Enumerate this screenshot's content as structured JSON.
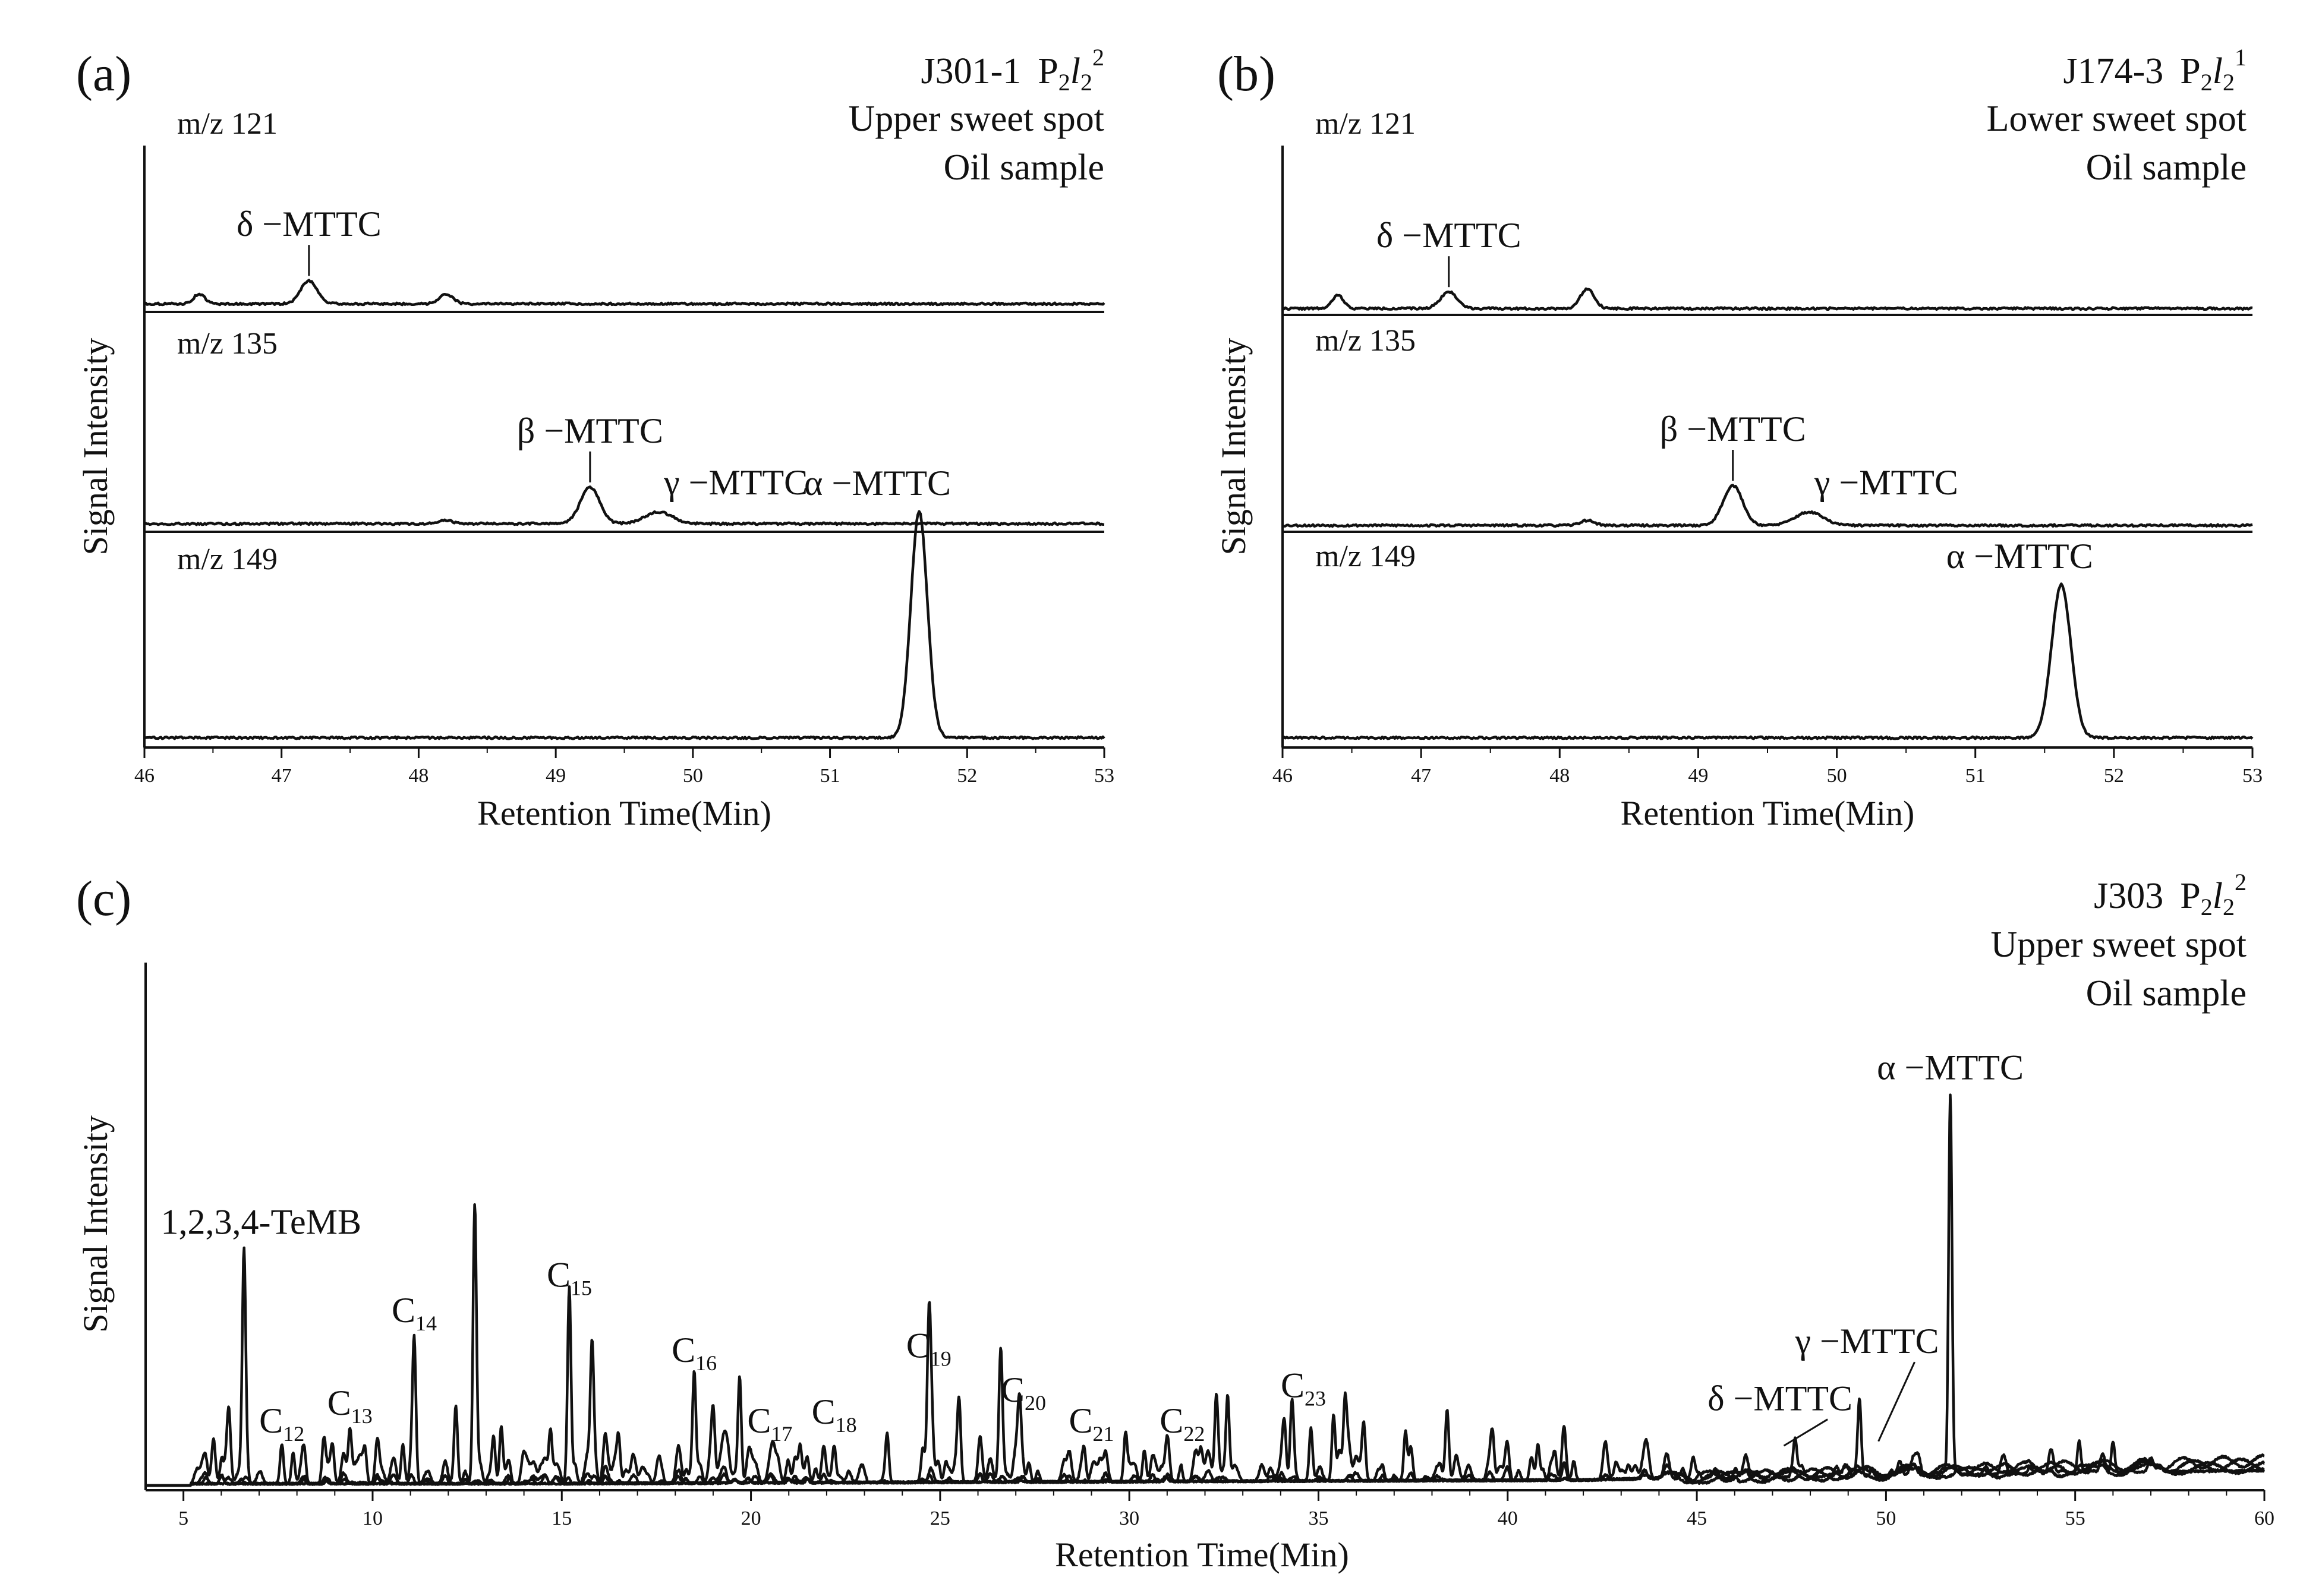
{
  "chart_data": [
    {
      "type": "line",
      "panel_label": "(a)",
      "sample_info": {
        "well": "J301-1",
        "formation": "P2l2 2",
        "zone": "Upper sweet spot",
        "sample": "Oil sample"
      },
      "xlabel": "Retention Time(Min)",
      "ylabel": "Signal Intensity",
      "xlim": [
        46,
        53
      ],
      "xticks": [
        46,
        47,
        48,
        49,
        50,
        51,
        52,
        53
      ],
      "grid": false,
      "series": [
        {
          "name": "m/z 121",
          "baseline": 0.01,
          "peaks": [
            {
              "x": 46.4,
              "h": 0.03,
              "w": 0.04
            },
            {
              "x": 47.2,
              "h": 0.07,
              "w": 0.06,
              "label": "δ −MTTC"
            },
            {
              "x": 48.2,
              "h": 0.03,
              "w": 0.05
            }
          ]
        },
        {
          "name": "m/z 135",
          "baseline": 0.01,
          "peaks": [
            {
              "x": 48.2,
              "h": 0.01,
              "w": 0.05
            },
            {
              "x": 49.25,
              "h": 0.11,
              "w": 0.07,
              "label": "β −MTTC"
            },
            {
              "x": 49.75,
              "h": 0.035,
              "w": 0.1,
              "label": "γ −MTTC"
            }
          ]
        },
        {
          "name": "m/z 149",
          "baseline": 0.015,
          "peaks": [
            {
              "x": 51.65,
              "h": 0.68,
              "w": 0.06,
              "label": "α −MTTC"
            }
          ]
        }
      ]
    },
    {
      "type": "line",
      "panel_label": "(b)",
      "sample_info": {
        "well": "J174-3",
        "formation": "P2l2 1",
        "zone": "Lower sweet spot",
        "sample": "Oil sample"
      },
      "xlabel": "Retention Time(Min)",
      "ylabel": "Signal Intensity",
      "xlim": [
        46,
        53
      ],
      "xticks": [
        46,
        47,
        48,
        49,
        50,
        51,
        52,
        53
      ],
      "grid": false,
      "series": [
        {
          "name": "m/z 121",
          "baseline": 0.005,
          "peaks": [
            {
              "x": 46.4,
              "h": 0.04,
              "w": 0.04
            },
            {
              "x": 47.2,
              "h": 0.05,
              "w": 0.06,
              "label": "δ −MTTC"
            },
            {
              "x": 48.2,
              "h": 0.06,
              "w": 0.05
            }
          ]
        },
        {
          "name": "m/z 135",
          "baseline": 0.005,
          "peaks": [
            {
              "x": 48.2,
              "h": 0.015,
              "w": 0.05
            },
            {
              "x": 49.25,
              "h": 0.12,
              "w": 0.07,
              "label": "β −MTTC"
            },
            {
              "x": 49.8,
              "h": 0.04,
              "w": 0.1,
              "label": "γ −MTTC"
            }
          ]
        },
        {
          "name": "m/z 149",
          "baseline": 0.015,
          "peaks": [
            {
              "x": 51.62,
              "h": 0.46,
              "w": 0.07,
              "label": "α −MTTC"
            }
          ]
        }
      ]
    },
    {
      "type": "line",
      "panel_label": "(c)",
      "sample_info": {
        "well": "J303",
        "formation": "P2l2 2",
        "zone": "Upper sweet spot",
        "sample": "Oil sample"
      },
      "xlabel": "Retention Time(Min)",
      "ylabel": "Signal Intensity",
      "xlim": [
        4,
        60
      ],
      "xticks": [
        5,
        10,
        15,
        20,
        25,
        30,
        35,
        40,
        45,
        50,
        55,
        60
      ],
      "grid": false,
      "peak_labels": [
        {
          "text": "1,2,3,4-TeMB",
          "x": 6.6,
          "y": 0.57
        },
        {
          "text": "C",
          "sub": "12",
          "x": 7.6,
          "y": 0.12
        },
        {
          "text": "C",
          "sub": "13",
          "x": 9.4,
          "y": 0.16
        },
        {
          "text": "C",
          "sub": "14",
          "x": 11.1,
          "y": 0.37
        },
        {
          "text": "C",
          "sub": "15",
          "x": 15.2,
          "y": 0.45
        },
        {
          "text": "C",
          "sub": "16",
          "x": 18.5,
          "y": 0.28
        },
        {
          "text": "C",
          "sub": "17",
          "x": 20.5,
          "y": 0.12
        },
        {
          "text": "C",
          "sub": "18",
          "x": 22.2,
          "y": 0.14
        },
        {
          "text": "C",
          "sub": "19",
          "x": 24.7,
          "y": 0.29
        },
        {
          "text": "C",
          "sub": "20",
          "x": 27.2,
          "y": 0.19
        },
        {
          "text": "C",
          "sub": "21",
          "x": 29.0,
          "y": 0.12
        },
        {
          "text": "C",
          "sub": "22",
          "x": 31.4,
          "y": 0.12
        },
        {
          "text": "C",
          "sub": "23",
          "x": 34.6,
          "y": 0.2
        },
        {
          "text": "δ −MTTC",
          "x": 47.2,
          "y": 0.17,
          "pointer_to": [
            47.3,
            0.09
          ]
        },
        {
          "text": "γ −MTTC",
          "x": 49.5,
          "y": 0.3,
          "pointer_to": [
            49.8,
            0.1
          ]
        },
        {
          "text": "α −MTTC",
          "x": 51.7,
          "y": 0.92
        }
      ],
      "major_peaks": [
        {
          "x": 6.6,
          "h": 0.5
        },
        {
          "x": 6.2,
          "h": 0.11
        },
        {
          "x": 5.8,
          "h": 0.06
        },
        {
          "x": 7.6,
          "h": 0.09
        },
        {
          "x": 7.9,
          "h": 0.07
        },
        {
          "x": 8.7,
          "h": 0.07
        },
        {
          "x": 9.4,
          "h": 0.12
        },
        {
          "x": 9.8,
          "h": 0.07
        },
        {
          "x": 10.8,
          "h": 0.09
        },
        {
          "x": 11.1,
          "h": 0.31
        },
        {
          "x": 12.2,
          "h": 0.17
        },
        {
          "x": 12.7,
          "h": 0.62
        },
        {
          "x": 13.2,
          "h": 0.1
        },
        {
          "x": 13.4,
          "h": 0.13
        },
        {
          "x": 14.7,
          "h": 0.12
        },
        {
          "x": 15.2,
          "h": 0.41
        },
        {
          "x": 15.8,
          "h": 0.29
        },
        {
          "x": 16.5,
          "h": 0.08
        },
        {
          "x": 18.5,
          "h": 0.25
        },
        {
          "x": 19.0,
          "h": 0.13
        },
        {
          "x": 19.7,
          "h": 0.24
        },
        {
          "x": 21.3,
          "h": 0.08
        },
        {
          "x": 22.2,
          "h": 0.08
        },
        {
          "x": 23.6,
          "h": 0.11
        },
        {
          "x": 24.7,
          "h": 0.26
        },
        {
          "x": 25.5,
          "h": 0.18
        },
        {
          "x": 26.6,
          "h": 0.25
        },
        {
          "x": 27.1,
          "h": 0.15
        },
        {
          "x": 28.8,
          "h": 0.06
        },
        {
          "x": 29.9,
          "h": 0.11
        },
        {
          "x": 30.4,
          "h": 0.07
        },
        {
          "x": 31.9,
          "h": 0.06
        },
        {
          "x": 32.3,
          "h": 0.18
        },
        {
          "x": 32.6,
          "h": 0.19
        },
        {
          "x": 34.1,
          "h": 0.12
        },
        {
          "x": 34.3,
          "h": 0.16
        },
        {
          "x": 34.8,
          "h": 0.12
        },
        {
          "x": 35.4,
          "h": 0.15
        },
        {
          "x": 35.7,
          "h": 0.17
        },
        {
          "x": 36.2,
          "h": 0.12
        },
        {
          "x": 37.3,
          "h": 0.11
        },
        {
          "x": 38.4,
          "h": 0.16
        },
        {
          "x": 39.6,
          "h": 0.09
        },
        {
          "x": 40.8,
          "h": 0.08
        },
        {
          "x": 47.6,
          "h": 0.08
        },
        {
          "x": 49.3,
          "h": 0.17
        },
        {
          "x": 51.7,
          "h": 0.86
        },
        {
          "x": 55.1,
          "h": 0.06
        },
        {
          "x": 56.0,
          "h": 0.07
        }
      ]
    }
  ]
}
